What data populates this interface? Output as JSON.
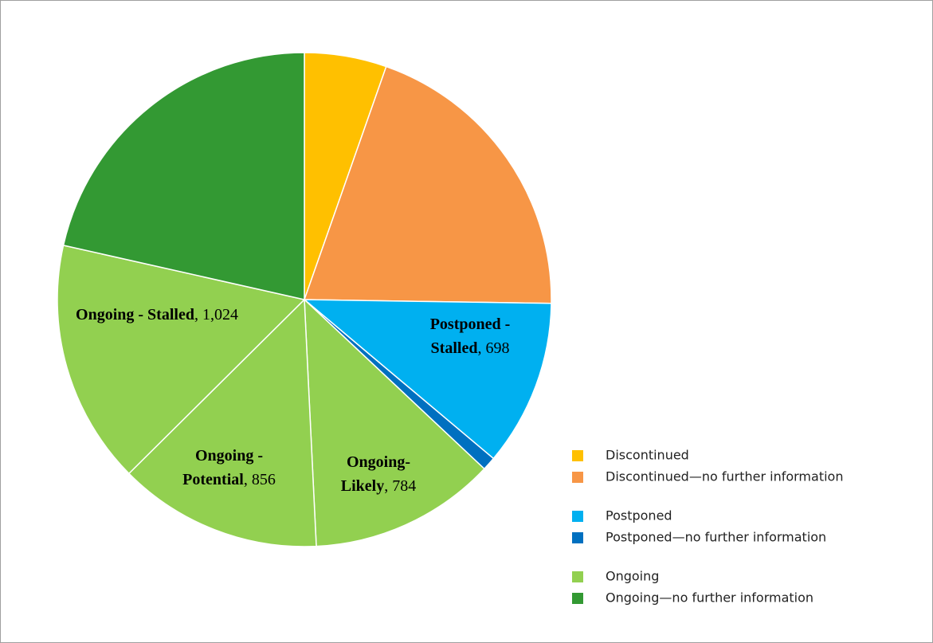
{
  "chart_data": {
    "type": "pie",
    "categories": [
      null,
      null,
      "Postponed - Stalled",
      null,
      "Ongoing- Likely",
      "Ongoing - Potential",
      "Ongoing - Stalled",
      null
    ],
    "values": [
      345,
      1275,
      698,
      57,
      784,
      856,
      1024,
      1378
    ],
    "value_labels": [
      null,
      null,
      "698",
      null,
      "784",
      "856",
      "1,024",
      null
    ],
    "colors": [
      "#FFC000",
      "#F79646",
      "#00B0F0",
      "#0070C0",
      "#92D050",
      "#92D050",
      "#92D050",
      "#339933"
    ],
    "legend": [
      {
        "name": "Discontinued",
        "color": "#FFC000"
      },
      {
        "name": "Discontinued—no further information",
        "color": "#F79646"
      },
      {
        "name": "Postponed",
        "color": "#00B0F0"
      },
      {
        "name": "Postponed—no further information",
        "color": "#0070C0"
      },
      {
        "name": "Ongoing",
        "color": "#92D050"
      },
      {
        "name": "Ongoing—no further information",
        "color": "#339933"
      }
    ]
  }
}
